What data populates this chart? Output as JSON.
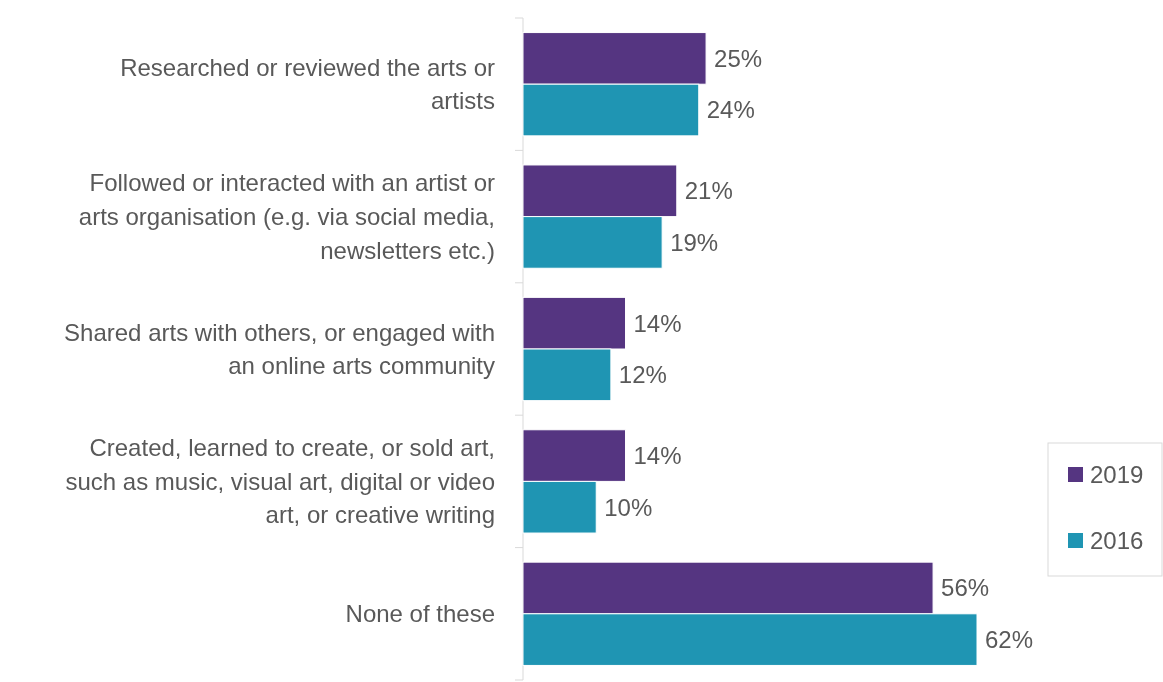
{
  "chart_data": {
    "type": "bar",
    "orientation": "horizontal",
    "categories": [
      "Researched or reviewed the arts or artists",
      "Followed or interacted with an artist or arts organisation (e.g. via social media, newsletters etc.)",
      "Shared arts with others, or engaged with an online arts community",
      "Created, learned to create, or sold art, such as music, visual art, digital or video art, or creative writing",
      "None of these"
    ],
    "series": [
      {
        "name": "2019",
        "color": "#553581",
        "values": [
          25,
          21,
          14,
          14,
          56
        ],
        "value_labels": [
          "25%",
          "21%",
          "14%",
          "14%",
          "56%"
        ]
      },
      {
        "name": "2016",
        "color": "#1f95b3",
        "values": [
          24,
          19,
          12,
          10,
          62
        ],
        "value_labels": [
          "24%",
          "19%",
          "12%",
          "10%",
          "62%"
        ]
      }
    ],
    "legend": "right"
  }
}
